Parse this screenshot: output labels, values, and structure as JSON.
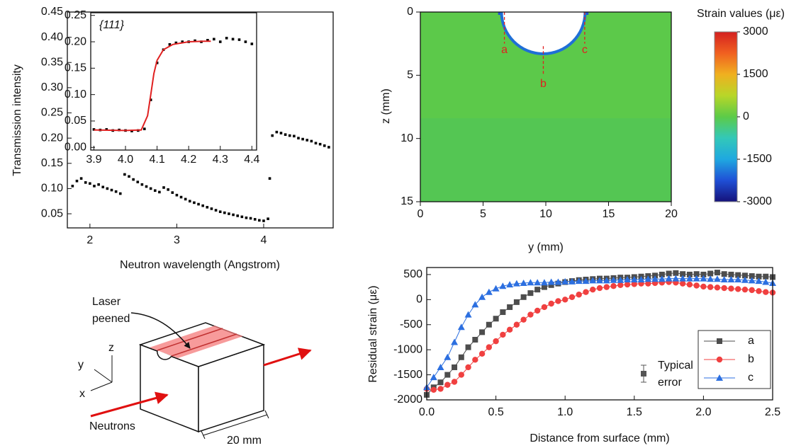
{
  "chart_data": [
    {
      "type": "scatter",
      "xlabel": "Neutron wavelength (Angstrom)",
      "ylabel": "Transmission intensity",
      "color": "#000000",
      "xlim": [
        1.74,
        4.8
      ],
      "ylim": [
        0.022,
        0.45
      ],
      "xticks": [
        2,
        3,
        4
      ],
      "yticks": [
        0.05,
        {
          "value": 0.1,
          "label": "0.10"
        },
        0.15,
        {
          "value": 0.2,
          "label": "0.20"
        },
        0.25,
        {
          "value": 0.3,
          "label": "0.30"
        },
        0.35,
        {
          "value": 0.4,
          "label": "0.40"
        },
        0.45
      ],
      "x": [
        1.8,
        1.85,
        1.9,
        1.95,
        2.0,
        2.05,
        2.1,
        2.15,
        2.2,
        2.25,
        2.3,
        2.35,
        2.4,
        2.45,
        2.5,
        2.55,
        2.6,
        2.65,
        2.7,
        2.75,
        2.8,
        2.85,
        2.9,
        2.95,
        3.0,
        3.05,
        3.1,
        3.15,
        3.2,
        3.25,
        3.3,
        3.35,
        3.4,
        3.45,
        3.5,
        3.55,
        3.6,
        3.65,
        3.7,
        3.75,
        3.8,
        3.85,
        3.9,
        3.95,
        4.0,
        4.05,
        4.07,
        4.1,
        4.15,
        4.2,
        4.25,
        4.3,
        4.35,
        4.4,
        4.45,
        4.5,
        4.55,
        4.6,
        4.65,
        4.7,
        4.75
      ],
      "values": [
        0.105,
        0.115,
        0.12,
        0.112,
        0.11,
        0.105,
        0.108,
        0.103,
        0.1,
        0.097,
        0.094,
        0.09,
        0.128,
        0.124,
        0.118,
        0.113,
        0.108,
        0.104,
        0.1,
        0.096,
        0.093,
        0.102,
        0.098,
        0.092,
        0.087,
        0.083,
        0.079,
        0.075,
        0.072,
        0.069,
        0.066,
        0.063,
        0.06,
        0.057,
        0.054,
        0.052,
        0.05,
        0.048,
        0.046,
        0.044,
        0.042,
        0.041,
        0.039,
        0.037,
        0.036,
        0.04,
        0.12,
        0.205,
        0.212,
        0.21,
        0.207,
        0.205,
        0.204,
        0.2,
        0.198,
        0.196,
        0.194,
        0.19,
        0.188,
        0.185,
        0.182
      ]
    },
    {
      "type": "scatter",
      "annotation": "{111}",
      "color": "#000000",
      "xlim": [
        3.89,
        4.415
      ],
      "ylim": [
        -0.005,
        0.255
      ],
      "xticks": [
        3.9,
        {
          "value": 4.0,
          "label": "4.0"
        },
        4.1,
        4.2,
        4.3,
        4.4
      ],
      "yticks": [
        {
          "value": 0,
          "label": "0.00"
        },
        0.05,
        {
          "value": 0.1,
          "label": "0.10"
        },
        0.15,
        {
          "value": 0.2,
          "label": "0.20"
        },
        0.25
      ],
      "x": [
        3.9,
        3.92,
        3.94,
        3.96,
        3.98,
        4.0,
        4.02,
        4.04,
        4.06,
        4.08,
        4.1,
        4.12,
        4.14,
        4.16,
        4.18,
        4.2,
        4.22,
        4.24,
        4.26,
        4.28,
        4.3,
        4.32,
        4.34,
        4.36,
        4.38,
        4.4
      ],
      "values": [
        0.034,
        0.033,
        0.034,
        0.032,
        0.033,
        0.032,
        0.031,
        0.032,
        0.035,
        0.09,
        0.16,
        0.185,
        0.195,
        0.198,
        0.2,
        0.2,
        0.202,
        0.2,
        0.203,
        0.205,
        0.2,
        0.207,
        0.205,
        0.204,
        0.2,
        0.196
      ],
      "fit": {
        "color": "#e02020",
        "x": [
          3.9,
          4.0,
          4.05,
          4.07,
          4.08,
          4.09,
          4.1,
          4.12,
          4.15,
          4.2,
          4.25,
          4.27
        ],
        "values": [
          0.033,
          0.032,
          0.033,
          0.06,
          0.1,
          0.14,
          0.165,
          0.185,
          0.195,
          0.2,
          0.201,
          0.201
        ]
      }
    },
    {
      "type": "heatmap",
      "xlabel": "y (mm)",
      "ylabel": "z (mm)",
      "xlim": [
        0,
        20
      ],
      "ylim": [
        15,
        0
      ],
      "xticks": [
        0,
        5,
        10,
        15,
        20
      ],
      "yticks": [
        0,
        5,
        10,
        15
      ],
      "annotations": [
        "a",
        "b",
        "c"
      ],
      "colorbar": {
        "label": "Strain values (με)",
        "lim": [
          -3000,
          3000
        ],
        "ticks": [
          3000,
          1500,
          0,
          -1500,
          -3000
        ],
        "colors": [
          "#15127a",
          "#1f4fd6",
          "#1fa8e0",
          "#33c8b8",
          "#5ccb48",
          "#b8d628",
          "#f0b020",
          "#f06020",
          "#d42020"
        ]
      }
    },
    {
      "type": "line",
      "xlabel": "Distance from surface (mm)",
      "ylabel": "Residual strain (με)",
      "legend": "lower right",
      "error_label": [
        "Typical",
        "error"
      ],
      "xlim": [
        0,
        2.5
      ],
      "ylim": [
        -2000,
        640
      ],
      "xticks": [
        {
          "value": 0,
          "label": "0.0"
        },
        0.5,
        {
          "value": 1,
          "label": "1.0"
        },
        1.5,
        {
          "value": 2,
          "label": "2.0"
        },
        2.5
      ],
      "yticks": [
        -2000,
        -1500,
        -1000,
        -500,
        0,
        500
      ],
      "x": [
        0,
        0.05,
        0.1,
        0.15,
        0.2,
        0.25,
        0.3,
        0.35,
        0.4,
        0.45,
        0.5,
        0.55,
        0.6,
        0.65,
        0.7,
        0.75,
        0.8,
        0.85,
        0.9,
        0.95,
        1.0,
        1.05,
        1.1,
        1.15,
        1.2,
        1.25,
        1.3,
        1.35,
        1.4,
        1.45,
        1.5,
        1.55,
        1.6,
        1.65,
        1.7,
        1.75,
        1.8,
        1.85,
        1.9,
        1.95,
        2.0,
        2.05,
        2.1,
        2.15,
        2.2,
        2.25,
        2.3,
        2.35,
        2.4,
        2.45,
        2.5
      ],
      "series": [
        {
          "name": "a",
          "color": "#4d4d4d",
          "marker": "square",
          "values": [
            -1900,
            -1750,
            -1650,
            -1500,
            -1350,
            -1150,
            -950,
            -800,
            -650,
            -500,
            -380,
            -250,
            -150,
            -50,
            50,
            130,
            200,
            250,
            290,
            320,
            350,
            370,
            390,
            400,
            410,
            420,
            420,
            430,
            440,
            440,
            450,
            460,
            470,
            480,
            500,
            520,
            530,
            510,
            500,
            510,
            500,
            520,
            540,
            510,
            500,
            490,
            480,
            470,
            460,
            460,
            450
          ]
        },
        {
          "name": "b",
          "color": "#f04040",
          "marker": "circle",
          "values": [
            -1780,
            -1800,
            -1780,
            -1700,
            -1640,
            -1500,
            -1350,
            -1200,
            -1080,
            -950,
            -830,
            -700,
            -600,
            -500,
            -400,
            -300,
            -220,
            -150,
            -80,
            -30,
            0,
            50,
            100,
            150,
            200,
            230,
            250,
            270,
            290,
            300,
            310,
            320,
            320,
            330,
            340,
            350,
            340,
            320,
            300,
            280,
            260,
            250,
            240,
            230,
            220,
            210,
            200,
            190,
            170,
            150,
            140
          ]
        },
        {
          "name": "c",
          "color": "#2c6fe0",
          "marker": "triangle",
          "values": [
            -1750,
            -1550,
            -1350,
            -1150,
            -850,
            -550,
            -300,
            -100,
            50,
            150,
            220,
            270,
            300,
            320,
            330,
            340,
            340,
            340,
            350,
            350,
            360,
            360,
            370,
            370,
            380,
            380,
            380,
            390,
            390,
            400,
            400,
            400,
            410,
            410,
            410,
            420,
            420,
            420,
            420,
            420,
            420,
            410,
            410,
            400,
            400,
            400,
            390,
            380,
            370,
            350,
            330
          ]
        }
      ]
    }
  ],
  "diagram": {
    "laser_label": [
      "Laser",
      "peened"
    ],
    "neutrons_label": "Neutrons",
    "dimension_label": "20 mm",
    "axes": [
      "x",
      "y",
      "z"
    ]
  }
}
